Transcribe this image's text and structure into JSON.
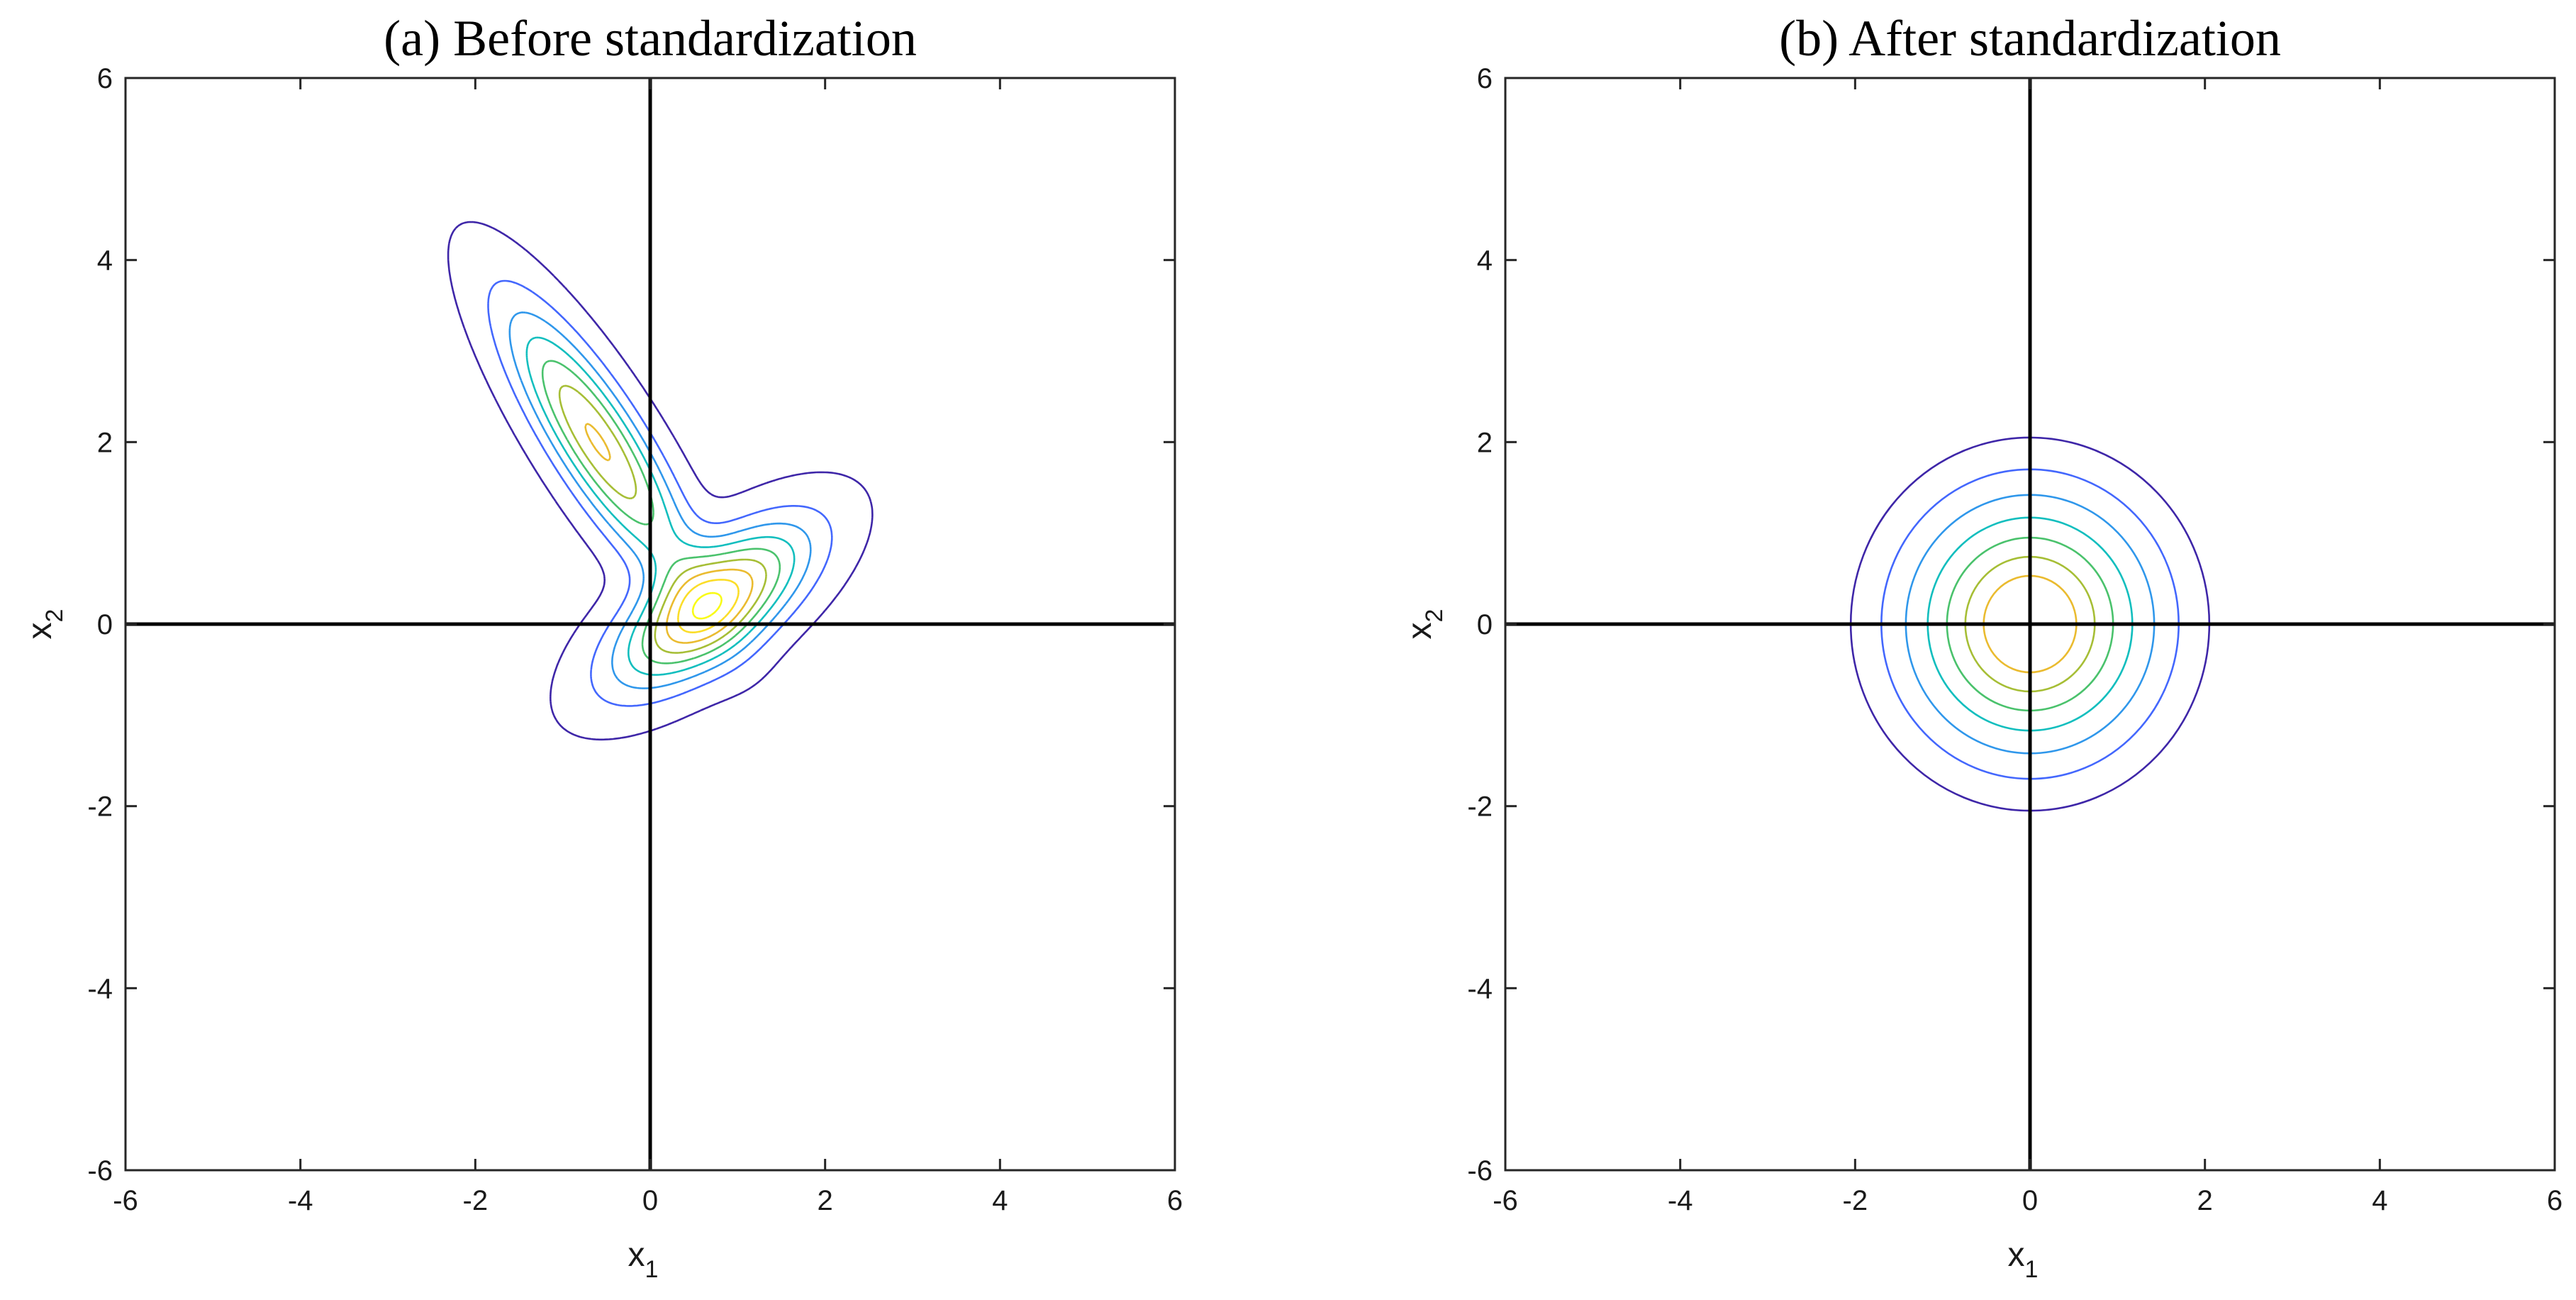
{
  "chart_data": [
    {
      "type": "contour",
      "title": "(a) Before standardization",
      "xlabel": "x",
      "xlabel_sub": "1",
      "ylabel": "x",
      "ylabel_sub": "2",
      "xlim": [
        -6,
        6
      ],
      "ylim": [
        -6,
        6
      ],
      "xticks": [
        -6,
        -4,
        -2,
        0,
        2,
        4,
        6
      ],
      "yticks": [
        -6,
        -4,
        -2,
        0,
        2,
        4,
        6
      ],
      "xtick_labels": [
        "-6",
        "-4",
        "-2",
        "0",
        "2",
        "4",
        "6"
      ],
      "ytick_labels": [
        "-6",
        "-4",
        "-2",
        "0",
        "2",
        "4",
        "6"
      ],
      "origin_axes": true,
      "grid": false,
      "density": {
        "kind": "gaussian-mixture",
        "components": [
          {
            "weight": 0.5,
            "mean": [
              -0.6,
              2.0
            ],
            "cov": [
              [
                0.5,
                -0.6
              ],
              [
                -0.6,
                1.0
              ]
            ]
          },
          {
            "weight": 0.5,
            "mean": [
              0.7,
              0.2
            ],
            "cov": [
              [
                0.55,
                0.3
              ],
              [
                0.3,
                0.35
              ]
            ]
          }
        ]
      },
      "levels": 9,
      "colormap": [
        "#3e26a8",
        "#4367fd",
        "#2f97eb",
        "#12bebe",
        "#4ac26c",
        "#a6be35",
        "#eabb2f",
        "#fbdd27",
        "#f9fb15"
      ]
    },
    {
      "type": "contour",
      "title": "(b) After standardization",
      "xlabel": "x",
      "xlabel_sub": "1",
      "ylabel": "x",
      "ylabel_sub": "2",
      "xlim": [
        -6,
        6
      ],
      "ylim": [
        -6,
        6
      ],
      "xticks": [
        -6,
        -4,
        -2,
        0,
        2,
        4,
        6
      ],
      "yticks": [
        -6,
        -4,
        -2,
        0,
        2,
        4,
        6
      ],
      "xtick_labels": [
        "-6",
        "-4",
        "-2",
        "0",
        "2",
        "4",
        "6"
      ],
      "ytick_labels": [
        "-6",
        "-4",
        "-2",
        "0",
        "2",
        "4",
        "6"
      ],
      "origin_axes": true,
      "grid": false,
      "density": {
        "kind": "gaussian",
        "mean": [
          0,
          0
        ],
        "cov": [
          [
            1,
            0
          ],
          [
            0,
            1
          ]
        ]
      },
      "contour_radii": [
        2.05,
        1.7,
        1.42,
        1.17,
        0.95,
        0.74,
        0.53
      ],
      "colormap": [
        "#3e26a8",
        "#4367fd",
        "#2f97eb",
        "#12bebe",
        "#4ac26c",
        "#a6be35",
        "#eabb2f",
        "#f9fb15"
      ]
    }
  ]
}
